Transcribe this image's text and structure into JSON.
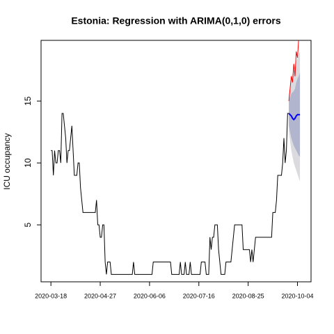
{
  "chart_data": {
    "type": "line",
    "title": "Estonia: Regression with ARIMA(0,1,0) errors",
    "ylabel": "ICU occupancy",
    "xlim": [
      "2020-03-10",
      "2020-10-15"
    ],
    "xticks": [
      "2020-03-18",
      "2020-04-27",
      "2020-06-06",
      "2020-07-16",
      "2020-08-25",
      "2020-10-04"
    ],
    "ylim": [
      0.4,
      19.9
    ],
    "yticks": [
      5,
      10,
      15
    ],
    "observed": {
      "color": "#000000",
      "x": [
        "2020-03-18",
        "2020-03-19",
        "2020-03-20",
        "2020-03-21",
        "2020-03-22",
        "2020-03-23",
        "2020-03-24",
        "2020-03-25",
        "2020-03-26",
        "2020-03-27",
        "2020-03-28",
        "2020-03-29",
        "2020-03-30",
        "2020-03-31",
        "2020-04-01",
        "2020-04-02",
        "2020-04-03",
        "2020-04-04",
        "2020-04-05",
        "2020-04-06",
        "2020-04-08",
        "2020-04-09",
        "2020-04-10",
        "2020-04-11",
        "2020-04-12",
        "2020-04-13",
        "2020-04-23",
        "2020-04-24",
        "2020-04-25",
        "2020-04-26",
        "2020-04-27",
        "2020-04-28",
        "2020-04-29",
        "2020-04-30",
        "2020-05-01",
        "2020-05-02",
        "2020-05-03",
        "2020-05-05",
        "2020-05-06",
        "2020-05-23",
        "2020-05-24",
        "2020-05-25",
        "2020-06-08",
        "2020-06-09",
        "2020-06-23",
        "2020-06-24",
        "2020-06-30",
        "2020-07-01",
        "2020-07-02",
        "2020-07-04",
        "2020-07-05",
        "2020-07-06",
        "2020-07-08",
        "2020-07-09",
        "2020-07-10",
        "2020-07-17",
        "2020-07-18",
        "2020-07-21",
        "2020-07-22",
        "2020-07-24",
        "2020-07-25",
        "2020-07-26",
        "2020-07-27",
        "2020-07-28",
        "2020-07-29",
        "2020-07-31",
        "2020-08-01",
        "2020-08-02",
        "2020-08-03",
        "2020-08-06",
        "2020-08-07",
        "2020-08-11",
        "2020-08-12",
        "2020-08-13",
        "2020-08-14",
        "2020-08-20",
        "2020-08-21",
        "2020-08-26",
        "2020-08-27",
        "2020-08-28",
        "2020-08-29",
        "2020-08-30",
        "2020-08-31",
        "2020-09-13",
        "2020-09-14",
        "2020-09-16",
        "2020-09-17",
        "2020-09-18",
        "2020-09-21",
        "2020-09-22",
        "2020-09-23",
        "2020-09-24",
        "2020-09-25",
        "2020-09-26",
        "2020-09-27"
      ],
      "values": [
        11,
        11,
        9,
        11,
        10,
        10,
        11,
        11,
        10,
        14,
        14,
        13,
        12,
        10,
        11,
        11,
        12,
        13,
        11,
        9,
        9,
        10,
        10,
        8,
        7,
        6,
        6,
        7,
        5,
        5,
        4,
        4,
        5,
        5,
        2,
        1,
        2,
        2,
        1,
        1,
        2,
        1,
        1,
        2,
        2,
        1,
        1,
        2,
        1,
        1,
        2,
        1,
        1,
        2,
        1,
        1,
        2,
        2,
        1,
        1,
        4,
        3,
        4,
        4,
        5,
        5,
        3,
        2,
        1,
        1,
        2,
        2,
        3,
        4,
        5,
        5,
        3,
        3,
        2,
        3,
        2,
        3,
        4,
        4,
        6,
        6,
        7,
        9,
        9,
        10,
        12,
        10,
        11,
        14,
        14
      ]
    },
    "forecast": {
      "mean_color": "#0000ff",
      "band80_color": "#b1b5ce",
      "band95_color": "#dbdbdf",
      "x": [
        "2020-09-27",
        "2020-09-28",
        "2020-09-29",
        "2020-09-30",
        "2020-10-01",
        "2020-10-02",
        "2020-10-03",
        "2020-10-04",
        "2020-10-05",
        "2020-10-06"
      ],
      "mean": [
        14,
        13.9,
        13.8,
        13.6,
        13.5,
        13.6,
        13.8,
        13.9,
        13.9,
        13.9
      ],
      "lower80": [
        13,
        12.5,
        12,
        11.7,
        11.4,
        11.2,
        11,
        10.8,
        10.6,
        10.5
      ],
      "upper80": [
        15,
        15.3,
        15.6,
        15.7,
        15.8,
        16,
        16.5,
        16.8,
        17,
        17.3
      ],
      "lower95": [
        12.5,
        11.8,
        11,
        10.5,
        10,
        9.7,
        9.4,
        9.1,
        8.8,
        8.5
      ],
      "upper95": [
        15.5,
        16.2,
        16.8,
        17.2,
        17.5,
        17.8,
        18.2,
        18.5,
        18.8,
        19
      ]
    },
    "actual": {
      "color": "#ff0000",
      "x": [
        "2020-09-27",
        "2020-09-28",
        "2020-09-29",
        "2020-09-30",
        "2020-10-01",
        "2020-10-02",
        "2020-10-03",
        "2020-10-04",
        "2020-10-05",
        "2020-10-06"
      ],
      "values": [
        15,
        16,
        17,
        16.5,
        18,
        17,
        19,
        18.5,
        20,
        21
      ]
    }
  }
}
